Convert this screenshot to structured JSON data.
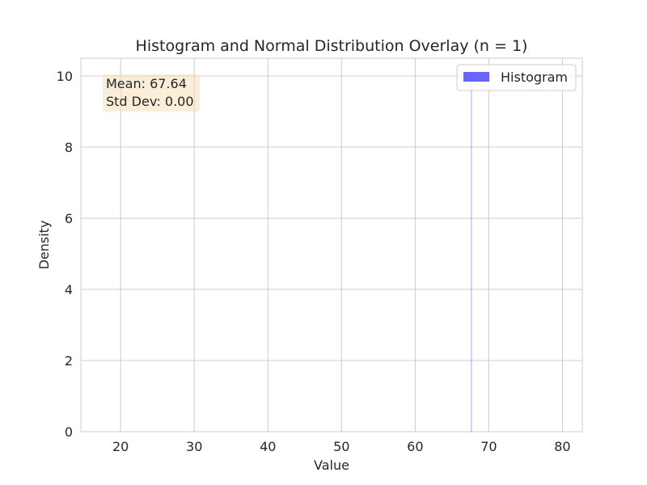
{
  "chart_data": {
    "type": "histogram",
    "title": "Histogram and Normal Distribution Overlay (n = 1)",
    "xlabel": "Value",
    "ylabel": "Density",
    "xlim": [
      14.6,
      82.7
    ],
    "ylim": [
      0,
      10.5
    ],
    "x_ticks": [
      20,
      30,
      40,
      50,
      60,
      70,
      80
    ],
    "y_ticks": [
      0,
      2,
      4,
      6,
      8,
      10
    ],
    "grid": true,
    "legend_position": "top-right",
    "series": [
      {
        "name": "Histogram",
        "color": "#6666ff",
        "bins": [
          {
            "x_start": 67.59,
            "x_end": 67.69,
            "density": 10.0
          }
        ]
      }
    ],
    "annotation": {
      "lines": [
        "Mean: 67.64",
        "Std Dev: 0.00"
      ],
      "background": "#f5deb3",
      "position": "top-left"
    }
  }
}
